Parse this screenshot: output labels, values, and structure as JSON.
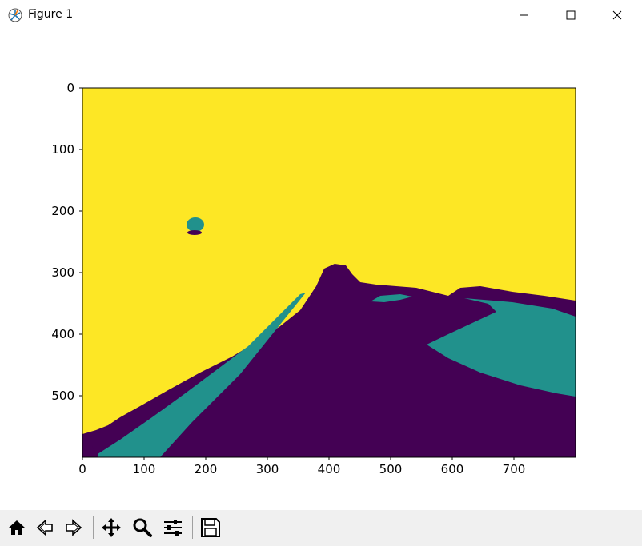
{
  "window": {
    "title": "Figure 1"
  },
  "chart_data": {
    "type": "heatmap",
    "xlim": [
      0,
      800
    ],
    "ylim": [
      600,
      0
    ],
    "xticks": [
      "0",
      "100",
      "200",
      "300",
      "400",
      "500",
      "600",
      "700"
    ],
    "yticks": [
      "0",
      "100",
      "200",
      "300",
      "400",
      "500"
    ],
    "colormap": "viridis",
    "classes": [
      {
        "value": 0,
        "color": "#440154"
      },
      {
        "value": 1,
        "color": "#21918c"
      },
      {
        "value": 2,
        "color": "#fde725"
      }
    ]
  },
  "toolbar": {
    "buttons": [
      "home-icon",
      "back-icon",
      "forward-icon",
      "pan-icon",
      "zoom-icon",
      "configure-subplots-icon",
      "save-icon"
    ]
  }
}
